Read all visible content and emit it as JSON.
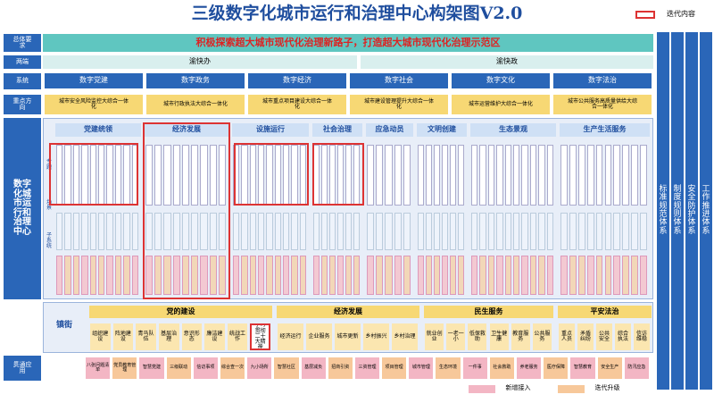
{
  "title": "三级数字化城市运行和治理中心构架图V2.0",
  "legend_top": "迭代内容",
  "side_labels": [
    "总体要求",
    "两端",
    "系统",
    "重点方向",
    "数字化城市运行和治理中心",
    "贯通应用"
  ],
  "goal": "积极探索超大城市现代化治理新路子，打造超大城市现代化治理示范区",
  "ends": [
    "渝快办",
    "渝快政"
  ],
  "systems": [
    "数字党建",
    "数字政务",
    "数字经济",
    "数字社会",
    "数字文化",
    "数字法治"
  ],
  "directions": [
    "城市安全风险监控大综合一体化",
    "城市行政执法大综合一体化",
    "城市重点项目建设大综合一体化",
    "城市建设管理提升大综合一体化",
    "城市运营维护大综合一体化",
    "城市公共服务高质量供给大综合一体化"
  ],
  "inner_labels": [
    "专题",
    "场景",
    "子系统"
  ],
  "domains": [
    "党建统领",
    "经济发展",
    "设施运行",
    "社会治理",
    "应急动员",
    "文明创建",
    "生态景观",
    "生产生活服务"
  ],
  "town": {
    "label": "镇街",
    "groups": [
      {
        "name": "党的建设",
        "items": [
          "组织建设",
          "阵地建设",
          "青马队伍",
          "基层治理",
          "意识形态",
          "廉洁建设",
          "统战工作",
          "学习贯彻二十大精神"
        ]
      },
      {
        "name": "经济发展",
        "items": [
          "经济运行",
          "企业服务",
          "城市更新",
          "乡村振兴",
          "乡村治理"
        ]
      },
      {
        "name": "民生服务",
        "items": [
          "就业创业",
          "一老一小",
          "低保救助",
          "卫生健康",
          "教育服务",
          "公共服务"
        ]
      },
      {
        "name": "平安法治",
        "items": [
          "重点人员",
          "矛盾纠纷",
          "公共安全",
          "综合执法",
          "信访维稳"
        ]
      }
    ]
  },
  "apps": [
    "八张问题清单",
    "党员教育管理",
    "智慧党建",
    "三级联动",
    "信访事项",
    "综合查一次",
    "九小场所",
    "智慧社区",
    "基层减负",
    "招商引资",
    "三资管理",
    "项目管理",
    "城市管理",
    "生态环境",
    "一件事",
    "社会救助",
    "养老服务",
    "医疗保障",
    "智慧教育",
    "安全生产",
    "防汛应急"
  ],
  "app_kinds": [
    "pink",
    "orange"
  ],
  "legend": [
    "新增接入",
    "迭代升级"
  ],
  "right_bars": [
    "标准规范体系",
    "制度规则体系",
    "安全防护体系",
    "工作推进体系"
  ]
}
